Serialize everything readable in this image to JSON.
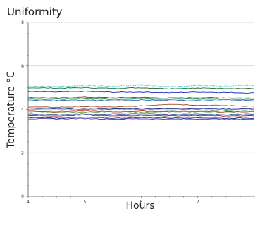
{
  "chart_data": {
    "type": "line",
    "title": "Uniformity",
    "xlabel": "Hours",
    "ylabel": "Temperature °C",
    "xlim": [
      4,
      8
    ],
    "ylim": [
      0,
      8
    ],
    "xticks": [
      4,
      5,
      6,
      7
    ],
    "xtick_labels": [
      "4",
      "5",
      "6",
      "7"
    ],
    "yticks": [
      0,
      2,
      4,
      6,
      8
    ],
    "ytick_labels": [
      "0",
      "2",
      "4",
      "6",
      "8"
    ],
    "grid": "horizontal",
    "legend": "none",
    "series": [
      {
        "color": "#35c8c4",
        "dashed": true,
        "points": [
          [
            4,
            5.08
          ],
          [
            4.5,
            5.06
          ],
          [
            5,
            5.1
          ],
          [
            5.5,
            5.07
          ],
          [
            6,
            5.12
          ],
          [
            6.5,
            5.05
          ],
          [
            7,
            5.1
          ],
          [
            7.5,
            5.08
          ],
          [
            8,
            5.1
          ]
        ]
      },
      {
        "color": "#1f6f3a",
        "dashed": false,
        "points": [
          [
            4,
            5.0
          ],
          [
            4.5,
            4.98
          ],
          [
            5,
            5.0
          ],
          [
            5.5,
            4.97
          ],
          [
            6,
            5.0
          ],
          [
            6.5,
            4.96
          ],
          [
            7,
            4.98
          ],
          [
            7.5,
            4.97
          ],
          [
            8,
            4.96
          ]
        ]
      },
      {
        "color": "#1f2bb8",
        "dashed": false,
        "points": [
          [
            4,
            4.82
          ],
          [
            4.5,
            4.8
          ],
          [
            5,
            4.83
          ],
          [
            5.5,
            4.79
          ],
          [
            6,
            4.8
          ],
          [
            6.5,
            4.77
          ],
          [
            7,
            4.8
          ],
          [
            7.5,
            4.78
          ],
          [
            8,
            4.76
          ]
        ]
      },
      {
        "color": "#b22222",
        "dashed": false,
        "points": [
          [
            4,
            4.55
          ],
          [
            4.5,
            4.52
          ],
          [
            5,
            4.56
          ],
          [
            5.5,
            4.53
          ],
          [
            6,
            4.55
          ],
          [
            6.5,
            4.52
          ],
          [
            7,
            4.54
          ],
          [
            7.5,
            4.53
          ],
          [
            8,
            4.52
          ]
        ]
      },
      {
        "color": "#2e8b57",
        "dashed": false,
        "points": [
          [
            4,
            4.48
          ],
          [
            4.5,
            4.47
          ],
          [
            5,
            4.5
          ],
          [
            5.5,
            4.46
          ],
          [
            6,
            4.5
          ],
          [
            6.5,
            4.47
          ],
          [
            7,
            4.48
          ],
          [
            7.5,
            4.46
          ],
          [
            8,
            4.47
          ]
        ]
      },
      {
        "color": "#3a6ea5",
        "dashed": false,
        "points": [
          [
            4,
            4.42
          ],
          [
            4.5,
            4.41
          ],
          [
            5,
            4.43
          ],
          [
            5.5,
            4.4
          ],
          [
            6,
            4.44
          ],
          [
            6.5,
            4.41
          ],
          [
            7,
            4.42
          ],
          [
            7.5,
            4.4
          ],
          [
            8,
            4.41
          ]
        ]
      },
      {
        "color": "#a0522d",
        "dashed": false,
        "points": [
          [
            4,
            4.12
          ],
          [
            4.5,
            4.1
          ],
          [
            5,
            4.14
          ],
          [
            5.5,
            4.11
          ],
          [
            6,
            4.16
          ],
          [
            6.5,
            4.25
          ],
          [
            7,
            4.2
          ],
          [
            7.5,
            4.18
          ],
          [
            8,
            4.15
          ]
        ]
      },
      {
        "color": "#2b3a8f",
        "dashed": false,
        "points": [
          [
            4,
            4.05
          ],
          [
            4.5,
            4.03
          ],
          [
            5,
            4.06
          ],
          [
            5.5,
            4.02
          ],
          [
            6,
            4.05
          ],
          [
            6.5,
            4.03
          ],
          [
            7,
            4.04
          ],
          [
            7.5,
            4.02
          ],
          [
            8,
            4.03
          ]
        ]
      },
      {
        "color": "#3c9a5f",
        "dashed": false,
        "points": [
          [
            4,
            3.98
          ],
          [
            4.5,
            3.96
          ],
          [
            5,
            4.0
          ],
          [
            5.5,
            3.97
          ],
          [
            6,
            3.99
          ],
          [
            6.5,
            3.96
          ],
          [
            7,
            3.98
          ],
          [
            7.5,
            3.95
          ],
          [
            8,
            3.97
          ]
        ]
      },
      {
        "color": "#c0392b",
        "dashed": false,
        "points": [
          [
            4,
            3.92
          ],
          [
            4.5,
            3.9
          ],
          [
            5,
            3.93
          ],
          [
            5.5,
            3.89
          ],
          [
            6,
            3.92
          ],
          [
            6.5,
            3.9
          ],
          [
            7,
            3.91
          ],
          [
            7.5,
            3.89
          ],
          [
            8,
            3.9
          ]
        ]
      },
      {
        "color": "#6a8e23",
        "dashed": false,
        "points": [
          [
            4,
            3.85
          ],
          [
            4.5,
            3.84
          ],
          [
            5,
            3.87
          ],
          [
            5.5,
            3.83
          ],
          [
            6,
            3.86
          ],
          [
            6.5,
            3.83
          ],
          [
            7,
            3.85
          ],
          [
            7.5,
            3.84
          ],
          [
            8,
            3.83
          ]
        ]
      },
      {
        "color": "#4169a8",
        "dashed": false,
        "points": [
          [
            4,
            3.78
          ],
          [
            4.5,
            3.76
          ],
          [
            5,
            3.79
          ],
          [
            5.5,
            3.75
          ],
          [
            6,
            3.8
          ],
          [
            6.5,
            3.76
          ],
          [
            7,
            3.78
          ],
          [
            7.5,
            3.76
          ],
          [
            8,
            3.77
          ]
        ]
      },
      {
        "color": "#8b2c2c",
        "dashed": false,
        "points": [
          [
            4,
            3.72
          ],
          [
            4.5,
            3.7
          ],
          [
            5,
            3.73
          ],
          [
            5.5,
            3.69
          ],
          [
            6,
            3.72
          ],
          [
            6.5,
            3.7
          ],
          [
            7,
            3.71
          ],
          [
            7.5,
            3.69
          ],
          [
            8,
            3.7
          ]
        ]
      },
      {
        "color": "#2a2f9c",
        "dashed": false,
        "points": [
          [
            4,
            3.62
          ],
          [
            4.5,
            3.6
          ],
          [
            5,
            3.63
          ],
          [
            5.5,
            3.59
          ],
          [
            6,
            3.62
          ],
          [
            6.5,
            3.6
          ],
          [
            7,
            3.61
          ],
          [
            7.5,
            3.59
          ],
          [
            8,
            3.6
          ]
        ]
      },
      {
        "color": "#5b3fa3",
        "dashed": false,
        "points": [
          [
            4,
            3.57
          ],
          [
            4.5,
            3.56
          ],
          [
            5,
            3.58
          ],
          [
            5.5,
            3.55
          ],
          [
            6,
            3.57
          ],
          [
            6.5,
            3.55
          ],
          [
            7,
            3.56
          ],
          [
            7.5,
            3.55
          ],
          [
            8,
            3.55
          ]
        ]
      }
    ]
  }
}
